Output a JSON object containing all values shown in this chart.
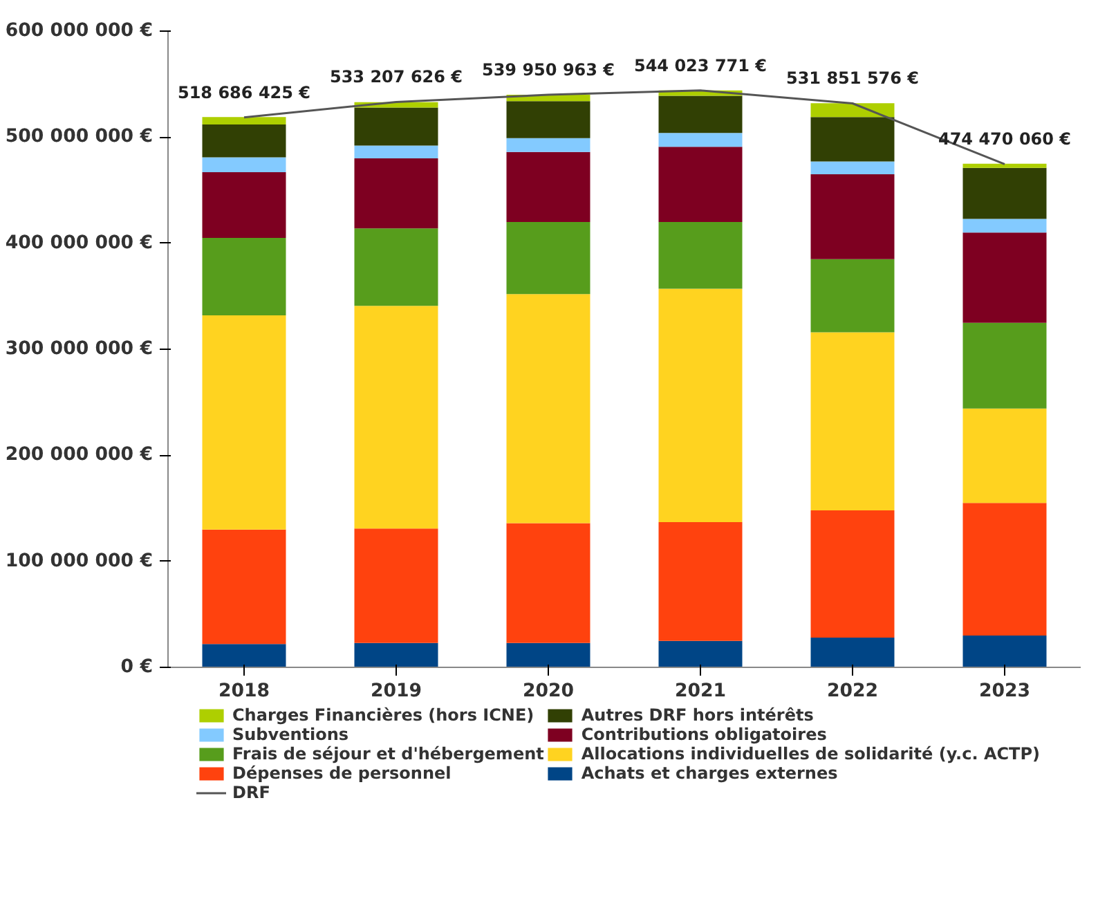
{
  "chart_data": {
    "type": "bar",
    "stacked": true,
    "categories": [
      "2018",
      "2019",
      "2020",
      "2021",
      "2022",
      "2023"
    ],
    "ylim": [
      0,
      600000000
    ],
    "yticks": [
      {
        "value": 0,
        "label": "0 €"
      },
      {
        "value": 100000000,
        "label": "100 000 000 €"
      },
      {
        "value": 200000000,
        "label": "200 000 000 €"
      },
      {
        "value": 300000000,
        "label": "300 000 000 €"
      },
      {
        "value": 400000000,
        "label": "400 000 000 €"
      },
      {
        "value": 500000000,
        "label": "500 000 000 €"
      },
      {
        "value": 600000000,
        "label": "600 000 000 €"
      }
    ],
    "grid": false,
    "legend": "bottom",
    "series": [
      {
        "name": "Achats et charges externes",
        "color": "#004586",
        "values": [
          22000000,
          23000000,
          23000000,
          25000000,
          28000000,
          30000000
        ]
      },
      {
        "name": "Dépenses de personnel",
        "color": "#ff420e",
        "values": [
          108000000,
          108000000,
          113000000,
          112000000,
          120000000,
          125000000
        ]
      },
      {
        "name": "Allocations individuelles de solidarité (y.c. ACTP)",
        "color": "#ffd320",
        "values": [
          202000000,
          210000000,
          216000000,
          220000000,
          168000000,
          89000000
        ]
      },
      {
        "name": "Frais de séjour et d'hébergement",
        "color": "#579d1c",
        "values": [
          73000000,
          73000000,
          68000000,
          63000000,
          69000000,
          81000000
        ]
      },
      {
        "name": "Contributions obligatoires",
        "color": "#7e0021",
        "values": [
          62000000,
          66000000,
          66000000,
          71000000,
          80000000,
          85000000
        ]
      },
      {
        "name": "Subventions",
        "color": "#83caff",
        "values": [
          14000000,
          12000000,
          13000000,
          13000000,
          12000000,
          13000000
        ]
      },
      {
        "name": "Autres DRF hors intérêts",
        "color": "#314004",
        "values": [
          31000000,
          36000000,
          35000000,
          35000000,
          42000000,
          48000000
        ]
      },
      {
        "name": "Charges Financières (hors ICNE)",
        "color": "#aecf00",
        "values": [
          7000000,
          5000000,
          6000000,
          5000000,
          13000000,
          4000000
        ]
      },
      {
        "name": "DRF",
        "type": "line",
        "color": "#555555",
        "values": [
          518686425,
          533207626,
          539950963,
          544023771,
          531851576,
          474470060
        ],
        "value_labels": [
          "518 686 425 €",
          "533 207 626 €",
          "539 950 963 €",
          "544 023 771 €",
          "531 851 576 €",
          "474 470 060 €"
        ]
      }
    ]
  }
}
